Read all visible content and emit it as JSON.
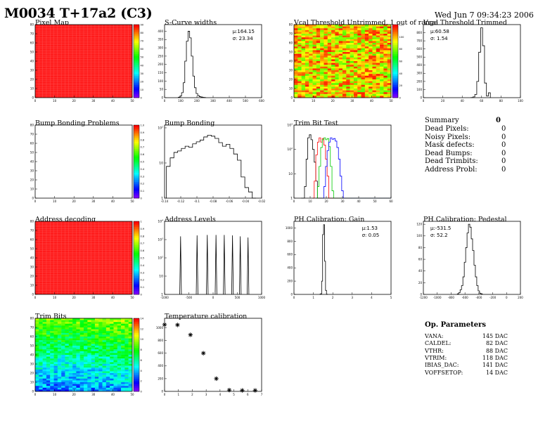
{
  "header": {
    "title": "M0034 T+17a2 (C3)",
    "timestamp": "Wed Jun  7 09:34:23 2006"
  },
  "colors": {
    "map_red": "#ff1a1a",
    "hist_line": "#000000",
    "trim_red": "#ff0000",
    "trim_green": "#00cc00",
    "trim_blue": "#0000ff"
  },
  "chart_data": [
    {
      "id": "pixel_map",
      "type": "heatmap",
      "title": "Pixel Map",
      "xlim": [
        0,
        52
      ],
      "ylim": [
        0,
        80
      ],
      "xticks": [
        "0",
        "10",
        "20",
        "30",
        "40",
        "50"
      ],
      "yticks": [
        "0",
        "10",
        "20",
        "30",
        "40",
        "50",
        "60",
        "70",
        "80"
      ],
      "zticks": [
        "0",
        "10",
        "20",
        "30",
        "40",
        "50",
        "60",
        "70",
        "80",
        "90"
      ],
      "fill": "uniform-max"
    },
    {
      "id": "scurve_widths",
      "type": "histogram",
      "title": "S-Curve widths",
      "xlim": [
        0,
        600
      ],
      "ylim": [
        0,
        440
      ],
      "xticks": [
        "0",
        "100",
        "200",
        "300",
        "400",
        "500",
        "600"
      ],
      "yticks": [
        "0",
        "50",
        "100",
        "150",
        "200",
        "250",
        "300",
        "350",
        "400"
      ],
      "stats": {
        "mean": "μ:164.15",
        "sigma": "σ: 23.34"
      },
      "x": [
        90,
        100,
        110,
        120,
        130,
        140,
        150,
        160,
        170,
        180,
        190,
        200,
        210,
        220,
        230,
        240,
        250
      ],
      "values": [
        3,
        10,
        30,
        90,
        220,
        340,
        400,
        360,
        250,
        130,
        60,
        25,
        12,
        6,
        4,
        2,
        1
      ]
    },
    {
      "id": "vcal_untrimmed",
      "type": "heatmap",
      "title": "Vcal Threshold Untrimmed, 1 out of range",
      "xlim": [
        0,
        52
      ],
      "ylim": [
        0,
        80
      ],
      "xticks": [
        "0",
        "10",
        "20",
        "30",
        "40",
        "50"
      ],
      "yticks": [
        "0",
        "10",
        "20",
        "30",
        "40",
        "50",
        "60",
        "70",
        "80"
      ],
      "zticks": [
        "0",
        "20",
        "40",
        "60",
        "80",
        "100",
        "120"
      ],
      "fill": "noisy-warm"
    },
    {
      "id": "vcal_trimmed",
      "type": "histogram",
      "title": "Vcal Threshold Trimmed",
      "xlim": [
        0,
        100
      ],
      "ylim": [
        0,
        900
      ],
      "xticks": [
        "0",
        "20",
        "40",
        "60",
        "80",
        "100"
      ],
      "yticks": [
        "0",
        "100",
        "200",
        "300",
        "400",
        "500",
        "600",
        "700",
        "800"
      ],
      "stats": {
        "mean": "μ:60.58",
        "sigma": "σ: 1.54"
      },
      "x": [
        50,
        52,
        54,
        56,
        58,
        60,
        62,
        64,
        66,
        68
      ],
      "values": [
        2,
        10,
        40,
        200,
        560,
        860,
        640,
        180,
        20,
        60
      ]
    },
    {
      "id": "bump_problems",
      "type": "heatmap",
      "title": "Bump Bonding Problems",
      "xlim": [
        0,
        52
      ],
      "ylim": [
        0,
        80
      ],
      "xticks": [
        "0",
        "10",
        "20",
        "30",
        "40",
        "50"
      ],
      "yticks": [
        "0",
        "10",
        "20",
        "30",
        "40",
        "50",
        "60",
        "70",
        "80"
      ],
      "zticks": [
        "0",
        "0.1",
        "0.2",
        "0.3",
        "0.4",
        "0.5",
        "0.6",
        "0.7",
        "0.8",
        "0.9",
        "1.0"
      ],
      "fill": "empty"
    },
    {
      "id": "bump_bonding",
      "type": "histogram",
      "title": "Bump Bonding",
      "yscale": "log",
      "ylim": [
        1,
        120
      ],
      "xlim": [
        -0.14,
        -0.01
      ],
      "xticks": [
        "-0.14",
        "-0.12",
        "-0.1",
        "-0.08",
        "-0.06",
        "-0.04",
        "-0.02"
      ],
      "x": [
        -0.135,
        -0.13,
        -0.125,
        -0.12,
        -0.115,
        -0.11,
        -0.105,
        -0.1,
        -0.095,
        -0.09,
        -0.085,
        -0.08,
        -0.075,
        -0.07,
        -0.065,
        -0.06,
        -0.055,
        -0.05,
        -0.045,
        -0.04,
        -0.035,
        -0.03,
        -0.025,
        -0.02
      ],
      "values": [
        8,
        14,
        20,
        22,
        26,
        30,
        28,
        35,
        40,
        45,
        55,
        62,
        58,
        50,
        38,
        30,
        34,
        26,
        18,
        12,
        4,
        2,
        1.5,
        1
      ]
    },
    {
      "id": "trim_bit_test",
      "type": "histogram",
      "title": "Trim Bit Test",
      "yscale": "log",
      "ylim": [
        1,
        1000
      ],
      "xlim": [
        0,
        60
      ],
      "xticks": [
        "0",
        "10",
        "20",
        "30",
        "40",
        "50",
        "60"
      ],
      "series": [
        {
          "color": "#000000",
          "x": [
            5,
            6,
            7,
            8,
            9,
            10,
            11,
            12,
            13,
            14,
            15,
            16,
            17,
            18
          ],
          "values": [
            1,
            1,
            3,
            40,
            300,
            400,
            250,
            100,
            30,
            5,
            1,
            1,
            1,
            1
          ]
        },
        {
          "color": "#ff0000",
          "x": [
            12,
            13,
            14,
            15,
            16,
            17,
            18,
            19,
            20,
            21,
            22,
            23,
            24
          ],
          "values": [
            1,
            5,
            60,
            200,
            300,
            200,
            280,
            150,
            40,
            8,
            1,
            1,
            1
          ]
        },
        {
          "color": "#00cc00",
          "x": [
            14,
            15,
            16,
            17,
            18,
            19,
            20,
            21,
            22,
            23,
            24,
            25,
            26
          ],
          "values": [
            1,
            3,
            20,
            120,
            250,
            300,
            250,
            280,
            130,
            20,
            2,
            1,
            1
          ]
        },
        {
          "color": "#0000ff",
          "x": [
            18,
            19,
            20,
            21,
            22,
            23,
            24,
            25,
            26,
            27,
            28,
            29,
            30,
            31,
            32
          ],
          "values": [
            1,
            3,
            20,
            90,
            200,
            300,
            260,
            280,
            220,
            120,
            40,
            8,
            2,
            1,
            1
          ]
        }
      ]
    },
    {
      "id": "address_decoding",
      "type": "heatmap",
      "title": "Address decoding",
      "xlim": [
        0,
        52
      ],
      "ylim": [
        0,
        80
      ],
      "xticks": [
        "0",
        "10",
        "20",
        "30",
        "40",
        "50"
      ],
      "yticks": [
        "0",
        "10",
        "20",
        "30",
        "40",
        "50",
        "60",
        "70",
        "80"
      ],
      "zticks": [
        "0",
        "0.1",
        "0.2",
        "0.3",
        "0.4",
        "0.5",
        "0.6",
        "0.7",
        "0.8",
        "0.9",
        "1"
      ],
      "fill": "uniform-max"
    },
    {
      "id": "address_levels",
      "type": "histogram",
      "title": "Address Levels",
      "yscale": "log",
      "ylim": [
        1,
        10000
      ],
      "xlim": [
        -1000,
        1000
      ],
      "xticks": [
        "-1000",
        "-500",
        "0",
        "500",
        "1000"
      ],
      "peaks": [
        -670,
        -330,
        -120,
        60,
        230,
        400,
        560,
        720
      ],
      "peak_heights": [
        1500,
        1700,
        1800,
        1800,
        1800,
        1700,
        1500,
        1300
      ]
    },
    {
      "id": "ph_gain",
      "type": "histogram",
      "title": "PH Calibration: Gain",
      "xlim": [
        0,
        5
      ],
      "ylim": [
        0,
        1100
      ],
      "xticks": [
        "0",
        "1",
        "2",
        "3",
        "4",
        "5"
      ],
      "yticks": [
        "0",
        "200",
        "400",
        "600",
        "800",
        "1000"
      ],
      "stats": {
        "mean": "μ:1.53",
        "sigma": "σ: 0.05"
      },
      "x": [
        1.35,
        1.4,
        1.45,
        1.5,
        1.55,
        1.6,
        1.65,
        1.7
      ],
      "values": [
        2,
        10,
        200,
        900,
        1050,
        500,
        60,
        2
      ]
    },
    {
      "id": "ph_pedestal",
      "type": "histogram",
      "title": "PH Calibration: Pedestal",
      "xlim": [
        -1200,
        200
      ],
      "ylim": [
        0,
        125
      ],
      "xticks": [
        "-1200",
        "-1000",
        "-800",
        "-600",
        "-400",
        "-200",
        "0",
        "200"
      ],
      "yticks": [
        "0",
        "20",
        "40",
        "60",
        "80",
        "100",
        "120"
      ],
      "stats": {
        "mean": "μ:-531.5",
        "sigma": "σ: 52.2"
      },
      "x": [
        -700,
        -680,
        -660,
        -640,
        -620,
        -600,
        -580,
        -560,
        -540,
        -520,
        -500,
        -480,
        -460,
        -440,
        -420,
        -400,
        -380,
        -360
      ],
      "values": [
        1,
        3,
        8,
        15,
        30,
        55,
        80,
        105,
        120,
        115,
        95,
        75,
        50,
        30,
        15,
        6,
        2,
        1
      ]
    },
    {
      "id": "trim_bits",
      "type": "heatmap",
      "title": "Trim Bits",
      "xlim": [
        0,
        52
      ],
      "ylim": [
        0,
        80
      ],
      "xticks": [
        "0",
        "10",
        "20",
        "30",
        "40",
        "50"
      ],
      "yticks": [
        "0",
        "10",
        "20",
        "30",
        "40",
        "50",
        "60",
        "70",
        "80"
      ],
      "zticks": [
        "0",
        "2",
        "4",
        "6",
        "8",
        "10",
        "12",
        "14"
      ],
      "fill": "gradient-trim"
    },
    {
      "id": "temperature_calibration",
      "type": "scatter",
      "title": "Temperature calibration",
      "xlim": [
        0,
        7.5
      ],
      "ylim": [
        0,
        1150
      ],
      "xticks": [
        "0",
        "1",
        "2",
        "3",
        "4",
        "5",
        "6",
        "7"
      ],
      "yticks": [
        "0",
        "200",
        "400",
        "600",
        "800",
        "1000"
      ],
      "x": [
        0,
        1,
        2,
        3,
        4,
        5,
        6,
        7
      ],
      "values": [
        1050,
        1045,
        890,
        600,
        200,
        20,
        15,
        15
      ]
    }
  ],
  "summary": {
    "title": "Summary",
    "total": "0",
    "rows": [
      {
        "label": "Dead Pixels:",
        "value": "0"
      },
      {
        "label": "Noisy Pixels:",
        "value": "0"
      },
      {
        "label": "Mask defects:",
        "value": "0"
      },
      {
        "label": "Dead Bumps:",
        "value": "0"
      },
      {
        "label": "Dead Trimbits:",
        "value": "0"
      },
      {
        "label": "Address Probl:",
        "value": "0"
      }
    ]
  },
  "op_params": {
    "title": "Op. Parameters",
    "rows": [
      {
        "label": "VANA:",
        "value": "145 DAC"
      },
      {
        "label": "CALDEL:",
        "value": "82 DAC"
      },
      {
        "label": "VTHR:",
        "value": "88 DAC"
      },
      {
        "label": "VTRIM:",
        "value": "118 DAC"
      },
      {
        "label": "IBIAS_DAC:",
        "value": "141 DAC"
      },
      {
        "label": "VOFFSETOP:",
        "value": "14 DAC"
      }
    ]
  }
}
